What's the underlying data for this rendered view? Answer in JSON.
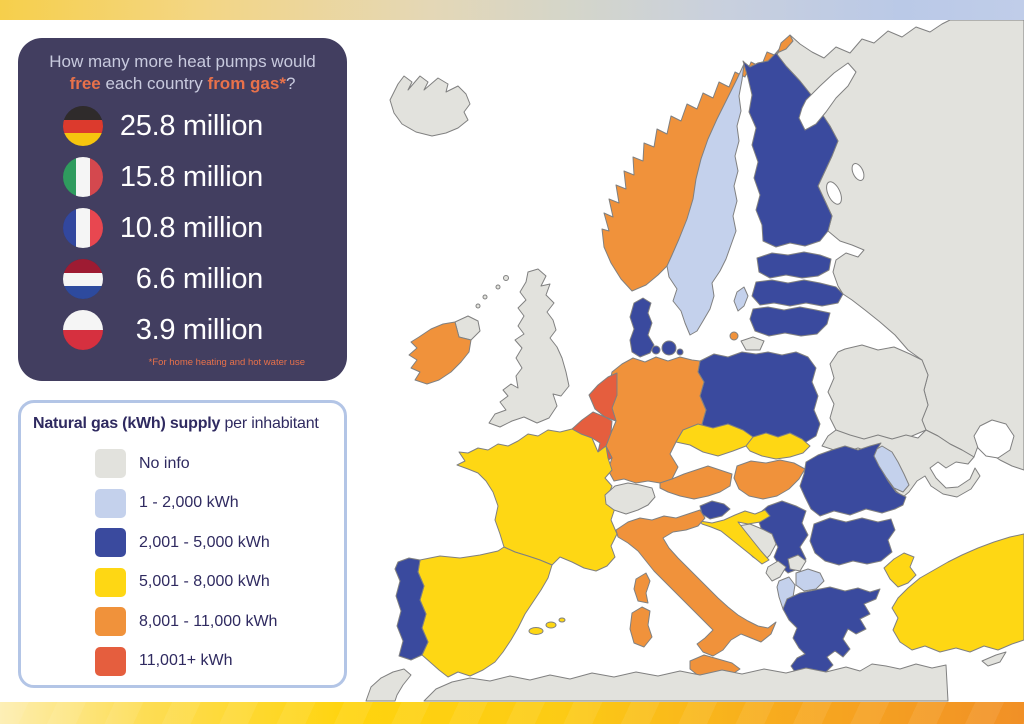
{
  "panel": {
    "title_line1": "How many more heat pumps would",
    "title_free": "free",
    "title_mid": " each country ",
    "title_fromgas": "from gas*",
    "title_question_mark": "?",
    "entries": [
      {
        "country": "Germany",
        "value": "25.8 million",
        "flag": {
          "type": "h",
          "colors": [
            "#2f2b2b",
            "#dc3a2d",
            "#f6c50e"
          ]
        }
      },
      {
        "country": "Italy",
        "value": "15.8 million",
        "flag": {
          "type": "v",
          "colors": [
            "#2f9b5e",
            "#f5f5f5",
            "#d4484e"
          ]
        }
      },
      {
        "country": "France",
        "value": "10.8 million",
        "flag": {
          "type": "v",
          "colors": [
            "#32479e",
            "#f5f5f5",
            "#e84750"
          ]
        }
      },
      {
        "country": "Netherlands",
        "value": "6.6 million",
        "flag": {
          "type": "h",
          "colors": [
            "#9e1b32",
            "#f5f5f5",
            "#2d4a9e"
          ]
        }
      },
      {
        "country": "Poland",
        "value": "3.9 million",
        "flag": {
          "type": "h",
          "colors": [
            "#f5f5f5",
            "#d6303f"
          ]
        }
      }
    ],
    "footnote": "*For home heating and hot water use"
  },
  "legend": {
    "title_bold": "Natural gas (kWh) supply",
    "title_rest": " per inhabitant",
    "items": [
      {
        "label": "No info",
        "color": "#e2e2dd"
      },
      {
        "label": "1 - 2,000 kWh",
        "color": "#c4d1ec"
      },
      {
        "label": "2,001 - 5,000 kWh",
        "color": "#3a4a9e"
      },
      {
        "label": "5,001 - 8,000 kWh",
        "color": "#fed714"
      },
      {
        "label": "8,001 - 11,000 kWh",
        "color": "#f0923b"
      },
      {
        "label": "11,001+ kWh",
        "color": "#e55e3e"
      }
    ]
  },
  "map": {
    "countries": [
      {
        "name": "iceland",
        "category": 0
      },
      {
        "name": "uk",
        "category": 0
      },
      {
        "name": "ireland",
        "category": 4
      },
      {
        "name": "norway",
        "category": 4
      },
      {
        "name": "sweden",
        "category": 1
      },
      {
        "name": "finland",
        "category": 2
      },
      {
        "name": "denmark",
        "category": 2
      },
      {
        "name": "estonia",
        "category": 2
      },
      {
        "name": "latvia",
        "category": 2
      },
      {
        "name": "lithuania",
        "category": 2
      },
      {
        "name": "poland",
        "category": 2
      },
      {
        "name": "germany",
        "category": 4
      },
      {
        "name": "netherlands",
        "category": 5
      },
      {
        "name": "belgium",
        "category": 5
      },
      {
        "name": "france",
        "category": 3
      },
      {
        "name": "corsica",
        "category": 4
      },
      {
        "name": "spain",
        "category": 3
      },
      {
        "name": "portugal",
        "category": 2
      },
      {
        "name": "switzerland",
        "category": 0
      },
      {
        "name": "austria",
        "category": 4
      },
      {
        "name": "czechia",
        "category": 3
      },
      {
        "name": "slovakia",
        "category": 3
      },
      {
        "name": "hungary",
        "category": 4
      },
      {
        "name": "slovenia",
        "category": 2
      },
      {
        "name": "croatia",
        "category": 3
      },
      {
        "name": "bosnia",
        "category": 0
      },
      {
        "name": "serbia",
        "category": 2
      },
      {
        "name": "montenegro",
        "category": 0
      },
      {
        "name": "kosovo",
        "category": 0
      },
      {
        "name": "albania",
        "category": 1
      },
      {
        "name": "north-macedonia",
        "category": 1
      },
      {
        "name": "greece",
        "category": 2
      },
      {
        "name": "romania",
        "category": 2
      },
      {
        "name": "bulgaria",
        "category": 2
      },
      {
        "name": "moldova",
        "category": 1
      },
      {
        "name": "ukraine",
        "category": 0
      },
      {
        "name": "belarus",
        "category": 0
      },
      {
        "name": "russia",
        "category": 0
      },
      {
        "name": "turkey",
        "category": 3
      },
      {
        "name": "cyprus",
        "category": 0
      },
      {
        "name": "italy",
        "category": 4
      },
      {
        "name": "bornholm",
        "category": 4
      },
      {
        "name": "north-africa",
        "category": 0
      }
    ]
  },
  "colors": {
    "panel_bg": "#423e60",
    "panel_text": "#c8cade",
    "accent_orange": "#e8714a",
    "legend_text": "#2f2a60",
    "legend_border": "#b3c5e6",
    "map_border": "#808080",
    "value_text": "#ffffff"
  }
}
